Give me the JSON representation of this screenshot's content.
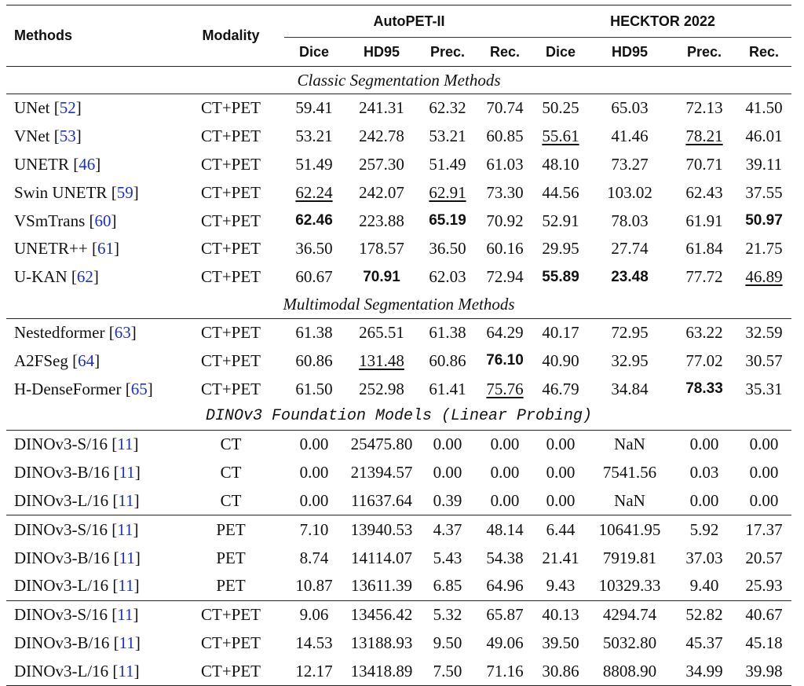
{
  "header": {
    "methods": "Methods",
    "modality": "Modality",
    "dataset1": "AutoPET-II",
    "dataset2": "HECKTOR 2022",
    "metrics": [
      "Dice",
      "HD95",
      "Prec.",
      "Rec.",
      "Dice",
      "HD95",
      "Prec.",
      "Rec."
    ]
  },
  "sections": {
    "classic": "Classic Segmentation Methods",
    "multimodal": "Multimodal Segmentation Methods",
    "dino": "DINOv3 Foundation Models (Linear Probing)"
  },
  "rows": [
    {
      "name": "UNet",
      "ref": "52",
      "modality": "CT+PET",
      "values": [
        "59.41",
        "241.31",
        "62.32",
        "70.74",
        "50.25",
        "65.03",
        "72.13",
        "41.50"
      ]
    },
    {
      "name": "VNet",
      "ref": "53",
      "modality": "CT+PET",
      "values": [
        "53.21",
        "242.78",
        "53.21",
        "60.85",
        "55.61",
        "41.46",
        "78.21",
        "46.01"
      ]
    },
    {
      "name": "UNETR",
      "ref": "46",
      "modality": "CT+PET",
      "values": [
        "51.49",
        "257.30",
        "51.49",
        "61.03",
        "48.10",
        "73.27",
        "70.71",
        "39.11"
      ]
    },
    {
      "name": "Swin UNETR",
      "ref": "59",
      "modality": "CT+PET",
      "values": [
        "62.24",
        "242.07",
        "62.91",
        "73.30",
        "44.56",
        "103.02",
        "62.43",
        "37.55"
      ]
    },
    {
      "name": "VSmTrans",
      "ref": "60",
      "modality": "CT+PET",
      "values": [
        "62.46",
        "223.88",
        "65.19",
        "70.92",
        "52.91",
        "78.03",
        "61.91",
        "50.97"
      ]
    },
    {
      "name": "UNETR++",
      "ref": "61",
      "modality": "CT+PET",
      "values": [
        "36.50",
        "178.57",
        "36.50",
        "60.16",
        "29.95",
        "27.74",
        "61.84",
        "21.75"
      ]
    },
    {
      "name": "U-KAN",
      "ref": "62",
      "modality": "CT+PET",
      "values": [
        "60.67",
        "70.91",
        "62.03",
        "72.94",
        "55.89",
        "23.48",
        "77.72",
        "46.89"
      ]
    },
    {
      "name": "Nestedformer",
      "ref": "63",
      "modality": "CT+PET",
      "values": [
        "61.38",
        "265.51",
        "61.38",
        "64.29",
        "40.17",
        "72.95",
        "63.22",
        "32.59"
      ]
    },
    {
      "name": "A2FSeg",
      "ref": "64",
      "modality": "CT+PET",
      "values": [
        "60.86",
        "131.48",
        "60.86",
        "76.10",
        "40.90",
        "32.95",
        "77.02",
        "30.57"
      ]
    },
    {
      "name": "H-DenseFormer",
      "ref": "65",
      "modality": "CT+PET",
      "values": [
        "61.50",
        "252.98",
        "61.41",
        "75.76",
        "46.79",
        "34.84",
        "78.33",
        "35.31"
      ]
    },
    {
      "name": "DINOv3-S/16",
      "ref": "11",
      "modality": "CT",
      "values": [
        "0.00",
        "25475.80",
        "0.00",
        "0.00",
        "0.00",
        "NaN",
        "0.00",
        "0.00"
      ]
    },
    {
      "name": "DINOv3-B/16",
      "ref": "11",
      "modality": "CT",
      "values": [
        "0.00",
        "21394.57",
        "0.00",
        "0.00",
        "0.00",
        "7541.56",
        "0.03",
        "0.00"
      ]
    },
    {
      "name": "DINOv3-L/16",
      "ref": "11",
      "modality": "CT",
      "values": [
        "0.00",
        "11637.64",
        "0.39",
        "0.00",
        "0.00",
        "NaN",
        "0.00",
        "0.00"
      ]
    },
    {
      "name": "DINOv3-S/16",
      "ref": "11",
      "modality": "PET",
      "values": [
        "7.10",
        "13940.53",
        "4.37",
        "48.14",
        "6.44",
        "10641.95",
        "5.92",
        "17.37"
      ]
    },
    {
      "name": "DINOv3-B/16",
      "ref": "11",
      "modality": "PET",
      "values": [
        "8.74",
        "14114.07",
        "5.43",
        "54.38",
        "21.41",
        "7919.81",
        "37.03",
        "20.57"
      ]
    },
    {
      "name": "DINOv3-L/16",
      "ref": "11",
      "modality": "PET",
      "values": [
        "10.87",
        "13611.39",
        "6.85",
        "64.96",
        "9.43",
        "10329.33",
        "9.40",
        "25.93"
      ]
    },
    {
      "name": "DINOv3-S/16",
      "ref": "11",
      "modality": "CT+PET",
      "values": [
        "9.06",
        "13456.42",
        "5.32",
        "65.87",
        "40.13",
        "4294.74",
        "52.82",
        "40.67"
      ]
    },
    {
      "name": "DINOv3-B/16",
      "ref": "11",
      "modality": "CT+PET",
      "values": [
        "14.53",
        "13188.93",
        "9.50",
        "49.06",
        "39.50",
        "5032.80",
        "45.37",
        "45.18"
      ]
    },
    {
      "name": "DINOv3-L/16",
      "ref": "11",
      "modality": "CT+PET",
      "values": [
        "12.17",
        "13418.89",
        "7.50",
        "71.16",
        "30.86",
        "8808.90",
        "34.99",
        "39.98"
      ]
    }
  ],
  "bold_cells": [
    [
      4,
      0
    ],
    [
      4,
      2
    ],
    [
      4,
      7
    ],
    [
      6,
      1
    ],
    [
      6,
      4
    ],
    [
      6,
      5
    ],
    [
      8,
      3
    ],
    [
      9,
      6
    ]
  ],
  "underlined_cells": [
    [
      1,
      4
    ],
    [
      1,
      6
    ],
    [
      3,
      0
    ],
    [
      3,
      2
    ],
    [
      6,
      7
    ],
    [
      8,
      1
    ],
    [
      9,
      3
    ]
  ]
}
